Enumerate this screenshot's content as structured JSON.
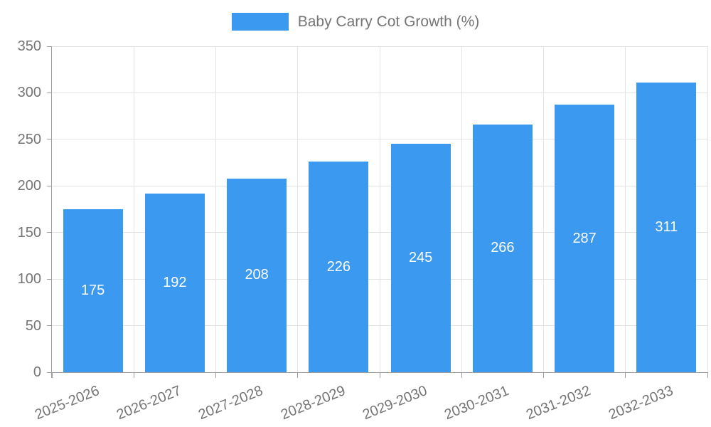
{
  "chart_data": {
    "type": "bar",
    "title": "Baby Carry Cot Growth (%)",
    "legend": {
      "label": "Baby Carry Cot Growth (%)",
      "position": "top-center"
    },
    "categories": [
      "2025-2026",
      "2026-2027",
      "2027-2028",
      "2028-2029",
      "2029-2030",
      "2030-2031",
      "2031-2032",
      "2032-2033"
    ],
    "values": [
      175,
      192,
      208,
      226,
      245,
      266,
      287,
      311
    ],
    "xlabel": "",
    "ylabel": "",
    "ylim": [
      0,
      350
    ],
    "yticks": [
      0,
      50,
      100,
      150,
      200,
      250,
      300,
      350
    ],
    "grid": true,
    "x_label_rotation_deg": -22,
    "colors": {
      "bar": "#3B99F0",
      "value_label": "#FFFFFF",
      "axis_text": "#757575",
      "grid_line": "#E3E3E3",
      "axis_line": "#9E9E9E"
    }
  }
}
